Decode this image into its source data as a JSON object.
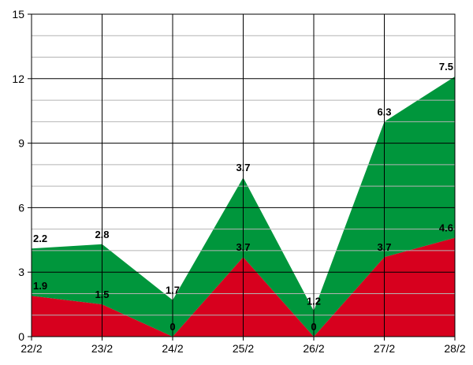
{
  "chart_data": {
    "type": "area",
    "stacked": true,
    "categories": [
      "22/2",
      "23/2",
      "24/2",
      "25/2",
      "26/2",
      "27/2",
      "28/2"
    ],
    "series": [
      {
        "values": [
          1.9,
          1.5,
          0,
          3.7,
          0,
          3.7,
          4.6
        ],
        "color": "#d7001e"
      },
      {
        "values": [
          2.2,
          2.8,
          1.7,
          3.7,
          1.2,
          6.3,
          7.5
        ],
        "color": "#00963c"
      }
    ],
    "y_ticks": [
      "0",
      "3",
      "6",
      "9",
      "12",
      "15"
    ],
    "ylim": [
      0,
      15
    ],
    "grid": true,
    "legend": "none",
    "title": "",
    "xlabel": "",
    "ylabel": ""
  }
}
